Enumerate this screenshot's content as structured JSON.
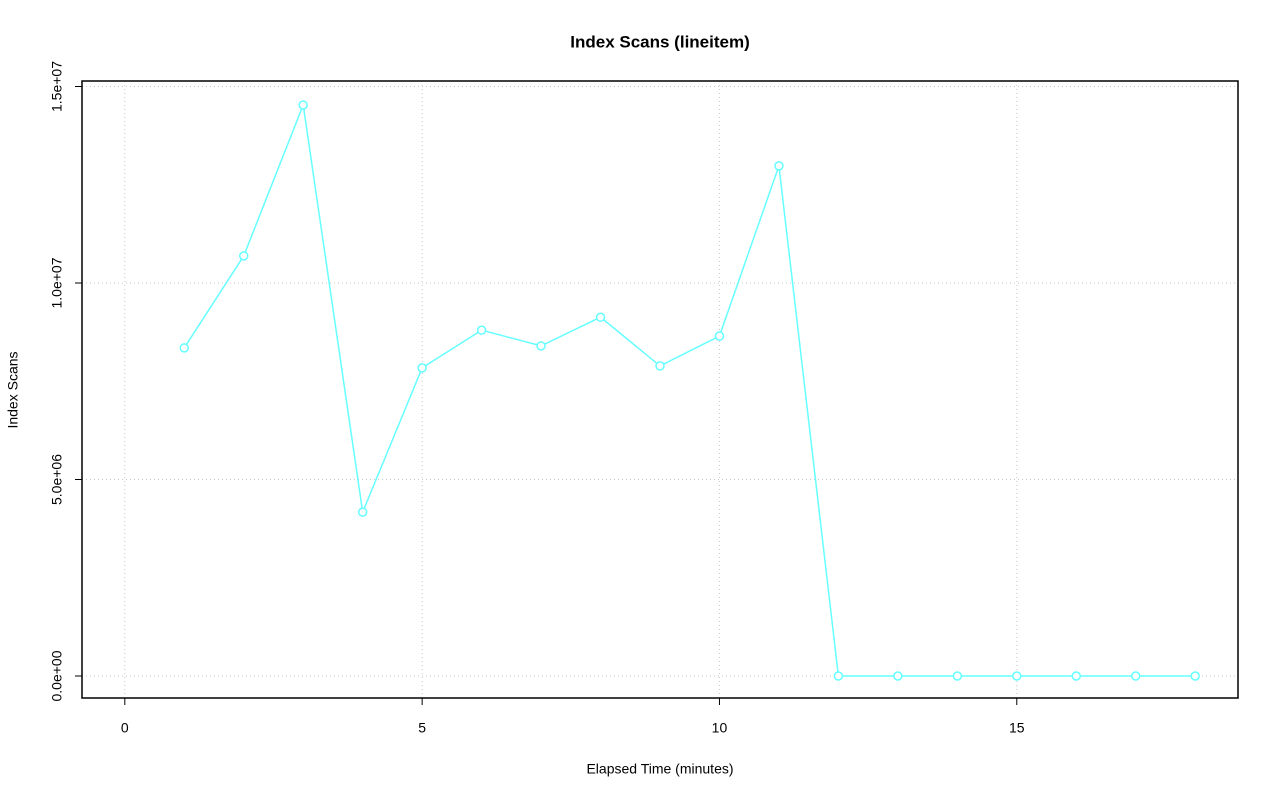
{
  "chart_data": {
    "type": "line",
    "title": "Index Scans (lineitem)",
    "x_label": "Elapsed Time (minutes)",
    "y_label": "Index Scans",
    "x": [
      1,
      2,
      3,
      4,
      5,
      6,
      7,
      8,
      9,
      10,
      11,
      12,
      13,
      14,
      15,
      16,
      17,
      18
    ],
    "series": [
      {
        "name": "lineitem",
        "color": "#66ffff",
        "values": [
          8350000,
          10690000,
          14530000,
          4170000,
          7840000,
          8800000,
          8400000,
          9130000,
          7890000,
          8650000,
          12980000,
          0,
          0,
          0,
          0,
          0,
          0,
          0
        ]
      }
    ],
    "xlim": [
      -0.72,
      18.72
    ],
    "xticks": [
      0,
      5,
      10,
      15
    ],
    "ylim": [
      -560000,
      15140000
    ],
    "yticks": [
      {
        "value": 0,
        "label": "0.0e+00"
      },
      {
        "value": 5000000,
        "label": "5.0e+06"
      },
      {
        "value": 10000000,
        "label": "1.0e+07"
      },
      {
        "value": 15000000,
        "label": "1.5e+07"
      }
    ],
    "grid": true
  }
}
